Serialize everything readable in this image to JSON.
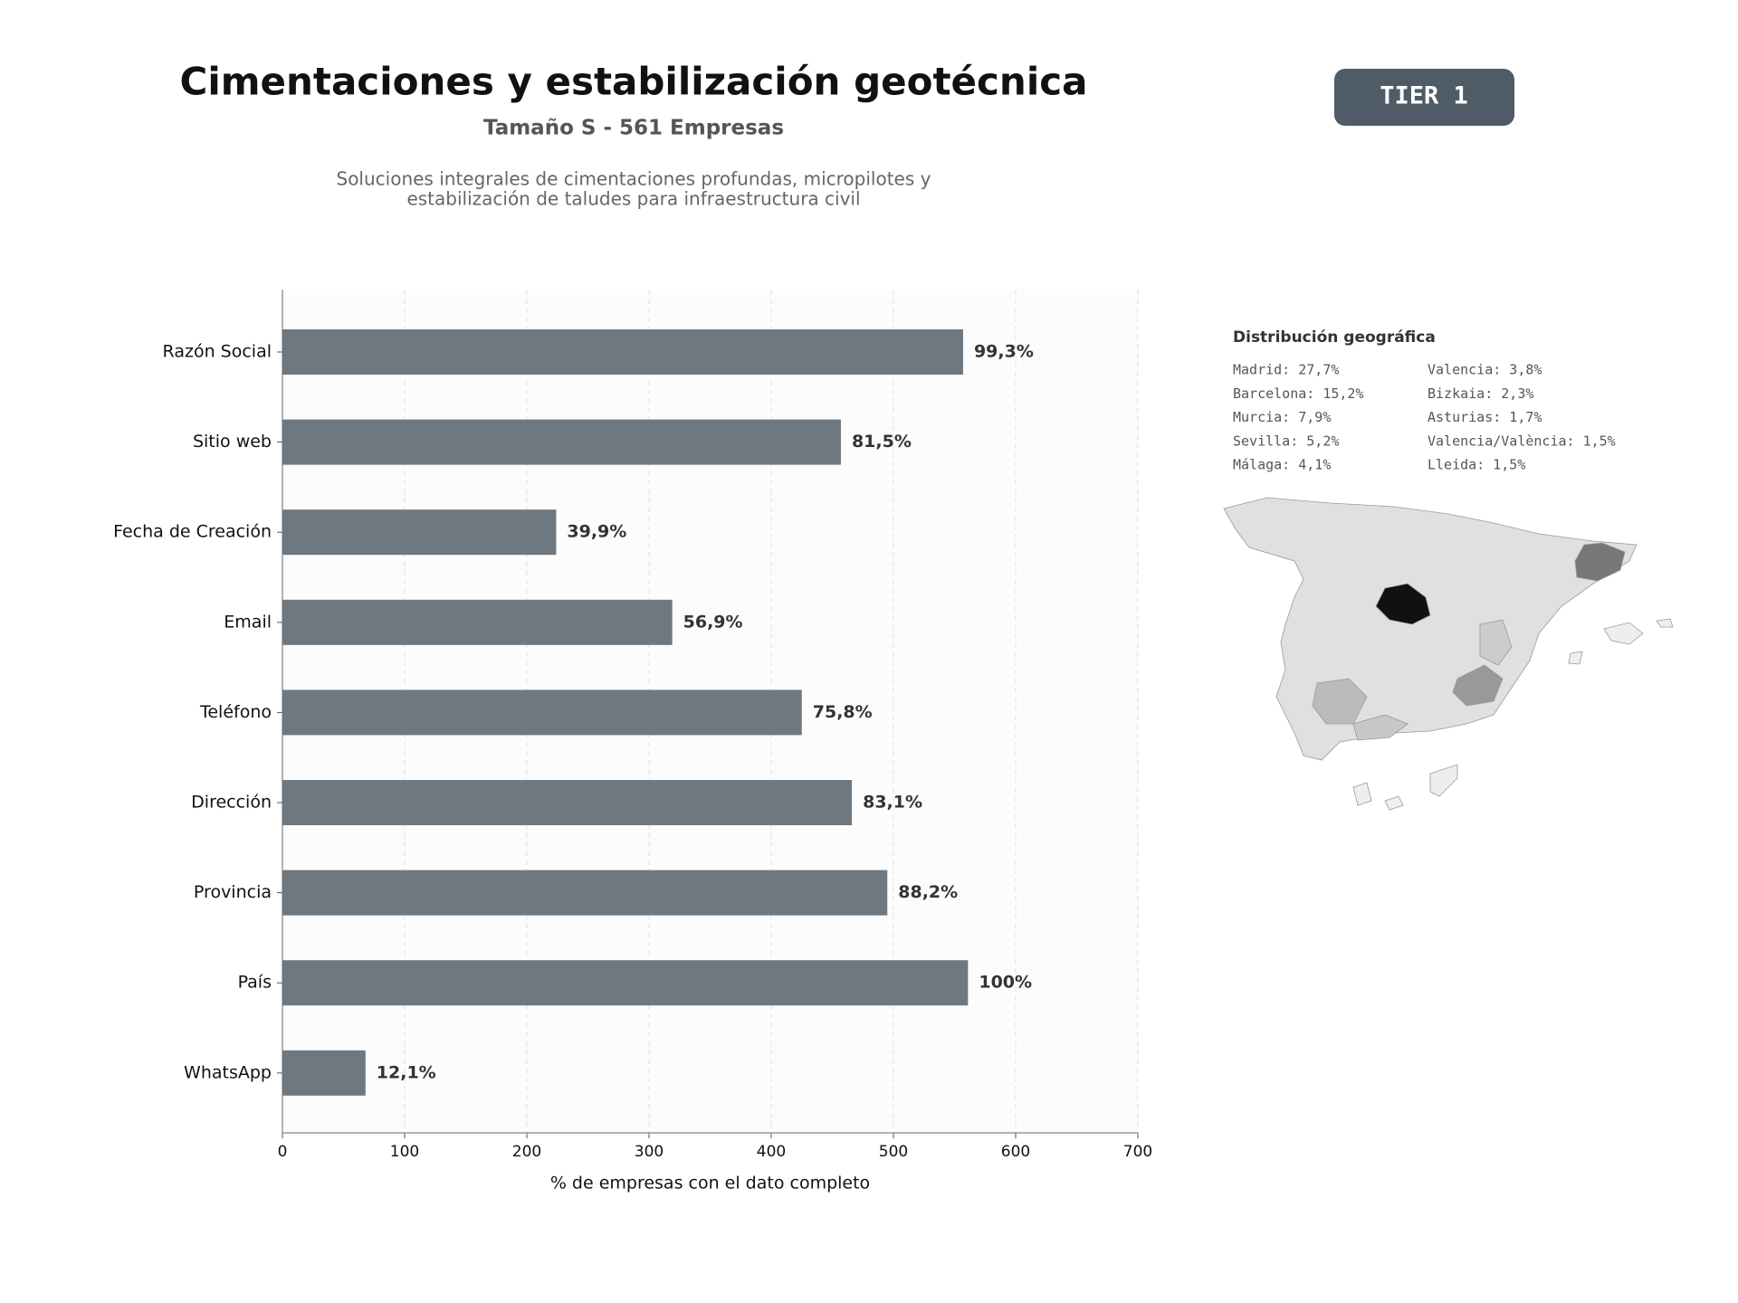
{
  "header": {
    "title": "Cimentaciones y estabilización geotécnica",
    "subtitle": "Tamaño S - 561 Empresas",
    "description": [
      "Soluciones integrales de cimentaciones profundas, micropilotes y",
      "estabilización de taludes para infraestructura civil"
    ],
    "badge": "TIER 1"
  },
  "chart_data": {
    "type": "bar",
    "orientation": "horizontal",
    "categories": [
      "Razón Social",
      "Sitio web",
      "Fecha de Creación",
      "Email",
      "Teléfono",
      "Dirección",
      "Provincia",
      "País",
      "WhatsApp"
    ],
    "values": [
      557,
      457,
      224,
      319,
      425,
      466,
      495,
      561,
      68
    ],
    "value_labels": [
      "99,3%",
      "81,5%",
      "39,9%",
      "56,9%",
      "75,8%",
      "83,1%",
      "88,2%",
      "100%",
      "12,1%"
    ],
    "color": "#6e7881",
    "xlim": [
      0,
      700
    ],
    "xticks": [
      0,
      100,
      200,
      300,
      400,
      500,
      600,
      700
    ],
    "xlabel": "% de empresas con el dato completo",
    "grid": true
  },
  "map": {
    "title": "Distribución geográfica",
    "legend": [
      [
        "Madrid: 27,7%",
        "Barcelona: 15,2%",
        "Murcia: 7,9%",
        "Sevilla: 5,2%",
        "Málaga: 4,1%"
      ],
      [
        "Valencia: 3,8%",
        "Bizkaia: 2,3%",
        "Asturias: 1,7%",
        "Valencia/València: 1,5%",
        "Lleida: 1,5%"
      ]
    ]
  }
}
